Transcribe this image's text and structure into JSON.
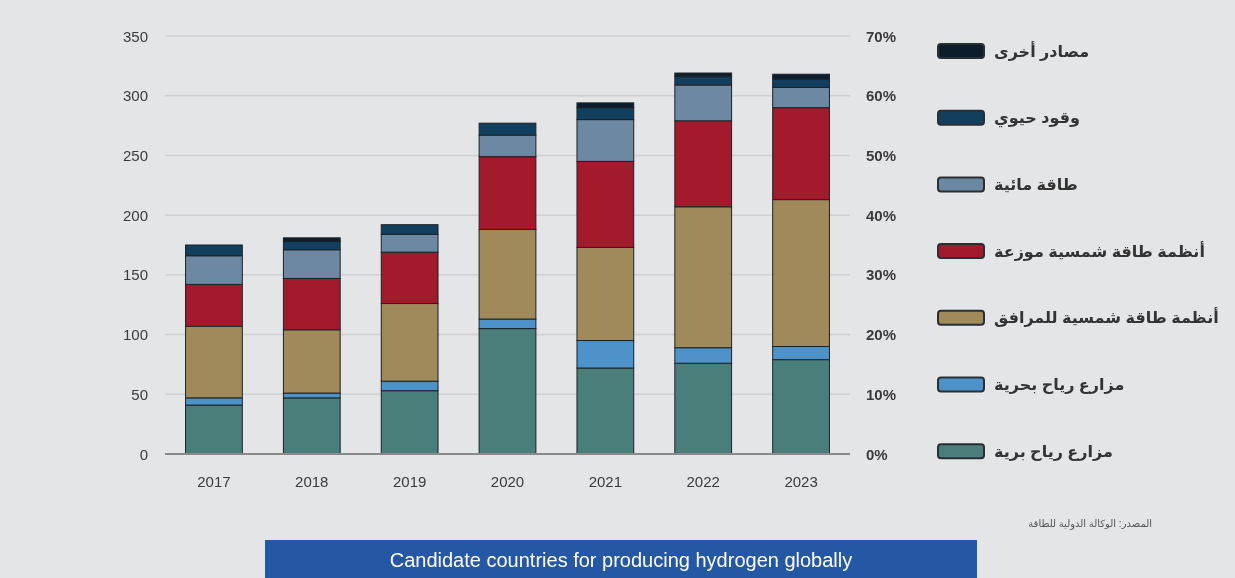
{
  "chart_data": {
    "type": "bar",
    "stacked": true,
    "title": "Candidate countries for producing hydrogen globally",
    "categories": [
      "2017",
      "2018",
      "2019",
      "2020",
      "2021",
      "2022",
      "2023"
    ],
    "series": [
      {
        "name": "مزارع رياح برية",
        "color": "#4a7e7b",
        "values": [
          41,
          47,
          53,
          105,
          72,
          76,
          79
        ]
      },
      {
        "name": "مزارع رياح بحرية",
        "color": "#4d93c9",
        "values": [
          6,
          4,
          8,
          8,
          23,
          13,
          11
        ]
      },
      {
        "name": "أنظمة طاقة شمسية للمرافق",
        "color": "#a08a5a",
        "values": [
          60,
          53,
          65,
          75,
          78,
          118,
          123
        ]
      },
      {
        "name": "أنظمة طاقة شمسية موزعة",
        "color": "#a31a2c",
        "values": [
          35,
          43,
          43,
          61,
          72,
          72,
          77
        ]
      },
      {
        "name": "طاقة مائية",
        "color": "#6d88a2",
        "values": [
          24,
          24,
          15,
          18,
          35,
          30,
          17
        ]
      },
      {
        "name": "وقود حيوي",
        "color": "#133f5f",
        "values": [
          9,
          7,
          8,
          10,
          10,
          7,
          7
        ]
      },
      {
        "name": "مصادر أخرى",
        "color": "#0d1d2b",
        "values": [
          null,
          3,
          null,
          null,
          4,
          3,
          4
        ]
      }
    ],
    "ylim": [
      0,
      350
    ],
    "yticks": [
      0,
      50,
      100,
      150,
      200,
      250,
      300,
      350
    ],
    "y2lim": [
      0,
      70
    ],
    "y2ticks": [
      {
        "value": 0,
        "label": "0%"
      },
      {
        "value": 10,
        "label": "10%"
      },
      {
        "value": 20,
        "label": "20%"
      },
      {
        "value": 30,
        "label": "30%"
      },
      {
        "value": 40,
        "label": "40%"
      },
      {
        "value": 50,
        "label": "50%"
      },
      {
        "value": 60,
        "label": "60%"
      },
      {
        "value": 70,
        "label": "70%"
      }
    ],
    "grid": "y",
    "legend": "right",
    "annotations": [
      "المصدر: الوكالة الدولية للطاقة"
    ]
  }
}
